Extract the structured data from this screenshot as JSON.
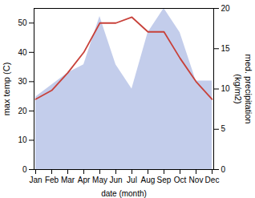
{
  "chart_data": {
    "type": "line",
    "categories": [
      "Jan",
      "Feb",
      "Mar",
      "Apr",
      "May",
      "Jun",
      "Jul",
      "Aug",
      "Sep",
      "Oct",
      "Nov",
      "Dec"
    ],
    "series": [
      {
        "type": "area",
        "axis": "y2",
        "color": "#b8c4e8",
        "values": [
          9,
          10.5,
          12,
          13,
          19,
          13,
          10,
          17,
          20,
          17,
          11,
          11
        ]
      },
      {
        "type": "line",
        "color": "#c8413a",
        "values": [
          24,
          27,
          33,
          40,
          50,
          50,
          52,
          47,
          47,
          38,
          30,
          24
        ]
      }
    ],
    "xlabel": "date (month)",
    "ylabel": "max temp (C)",
    "y2label": "med. precipitation\n(kg/m2)",
    "ylim": [
      0,
      55
    ],
    "yticks": [
      0,
      10,
      20,
      30,
      40,
      50
    ],
    "y2lim": [
      0,
      20
    ],
    "y2ticks": [
      0,
      5,
      10,
      15,
      20
    ]
  }
}
